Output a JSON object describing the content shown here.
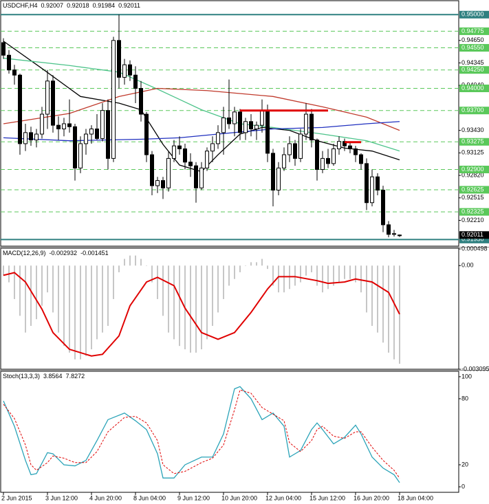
{
  "chart_data": [
    {
      "type": "candlestick",
      "symbol": "USDCHF,H4",
      "categories": [
        "2 Jun 2015",
        null,
        null,
        null,
        null,
        null,
        null,
        null,
        "3 Jun 12:00",
        null,
        null,
        null,
        null,
        null,
        null,
        null,
        "4 Jun 20:00",
        null,
        null,
        null,
        null,
        null,
        null,
        null,
        "8 Jun 04:00",
        null,
        null,
        null,
        null,
        null,
        null,
        null,
        "9 Jun 12:00",
        null,
        null,
        null,
        null,
        null,
        null,
        null,
        "10 Jun 20:00",
        null,
        null,
        null,
        null,
        null,
        null,
        null,
        "12 Jun 04:00",
        null,
        null,
        null,
        null,
        null,
        null,
        null,
        "15 Jun 12:00",
        null,
        null,
        null,
        null,
        null,
        null,
        null,
        "16 Jun 20:00",
        null,
        null,
        null,
        null,
        null,
        null,
        null,
        "18 Jun 04:00"
      ],
      "open": [
        0.9462,
        0.9445,
        0.9425,
        0.9418,
        0.9325,
        0.934,
        0.933,
        0.9338,
        0.9365,
        0.941,
        0.935,
        0.9345,
        0.9352,
        0.9348,
        0.9292,
        0.9325,
        0.9338,
        0.9345,
        0.9332,
        0.937,
        0.9305,
        0.9465,
        0.9415,
        0.9432,
        0.9418,
        0.94,
        0.9365,
        0.931,
        0.9268,
        0.9275,
        0.9265,
        0.9305,
        0.9322,
        0.9318,
        0.93,
        0.9295,
        0.9265,
        0.9292,
        0.9315,
        0.9325,
        0.934,
        0.936,
        0.9352,
        0.9368,
        0.934,
        0.9355,
        0.9345,
        0.935,
        0.937,
        0.9312,
        0.9262,
        0.9292,
        0.931,
        0.9325,
        0.9305,
        0.9338,
        0.9365,
        0.933,
        0.929,
        0.9305,
        0.9298,
        0.9318,
        0.9328,
        0.9322,
        0.9318,
        0.931,
        0.9298,
        0.9245,
        0.928,
        0.9262,
        0.9215,
        0.9202,
        0.92007
      ],
      "high": [
        0.9468,
        0.9452,
        0.9432,
        0.942,
        0.9352,
        0.9348,
        0.9345,
        0.9375,
        0.9425,
        0.9418,
        0.9362,
        0.936,
        0.9385,
        0.9352,
        0.9335,
        0.9345,
        0.935,
        0.9365,
        0.938,
        0.9385,
        0.947,
        0.95,
        0.944,
        0.9438,
        0.943,
        0.941,
        0.9368,
        0.9315,
        0.928,
        0.928,
        0.9315,
        0.933,
        0.9335,
        0.9325,
        0.9312,
        0.93,
        0.93,
        0.932,
        0.9335,
        0.935,
        0.9375,
        0.9412,
        0.9375,
        0.9372,
        0.936,
        0.9365,
        0.9355,
        0.9385,
        0.9378,
        0.9318,
        0.93,
        0.932,
        0.9335,
        0.933,
        0.9345,
        0.938,
        0.9372,
        0.9332,
        0.9315,
        0.9318,
        0.9325,
        0.9335,
        0.9332,
        0.9328,
        0.9322,
        0.9312,
        0.9305,
        0.929,
        0.9285,
        0.9268,
        0.922,
        0.9208,
        0.92018
      ],
      "low": [
        0.944,
        0.942,
        0.9405,
        0.931,
        0.9315,
        0.9322,
        0.932,
        0.9332,
        0.9345,
        0.934,
        0.933,
        0.9335,
        0.934,
        0.9275,
        0.9285,
        0.931,
        0.9325,
        0.933,
        0.9328,
        0.929,
        0.93,
        0.94,
        0.9405,
        0.941,
        0.938,
        0.9355,
        0.93,
        0.9255,
        0.9258,
        0.925,
        0.926,
        0.93,
        0.931,
        0.929,
        0.928,
        0.9245,
        0.9262,
        0.9288,
        0.93,
        0.9318,
        0.931,
        0.9345,
        0.9335,
        0.933,
        0.933,
        0.9335,
        0.933,
        0.934,
        0.93,
        0.924,
        0.9255,
        0.9288,
        0.93,
        0.9295,
        0.93,
        0.933,
        0.932,
        0.9275,
        0.9285,
        0.9292,
        0.9295,
        0.931,
        0.9315,
        0.9312,
        0.93,
        0.929,
        0.9235,
        0.924,
        0.9255,
        0.9205,
        0.9198,
        0.9199,
        0.91984
      ],
      "close": [
        0.9445,
        0.9425,
        0.9418,
        0.9325,
        0.934,
        0.933,
        0.9338,
        0.9365,
        0.941,
        0.935,
        0.9345,
        0.9352,
        0.9348,
        0.9292,
        0.9325,
        0.9338,
        0.9345,
        0.9332,
        0.937,
        0.9305,
        0.9465,
        0.9415,
        0.9432,
        0.9418,
        0.94,
        0.9365,
        0.931,
        0.9268,
        0.9275,
        0.9265,
        0.9305,
        0.9322,
        0.9318,
        0.93,
        0.9295,
        0.9265,
        0.9292,
        0.9315,
        0.9325,
        0.934,
        0.936,
        0.9352,
        0.9368,
        0.934,
        0.9355,
        0.9345,
        0.935,
        0.937,
        0.9312,
        0.9262,
        0.9292,
        0.931,
        0.9325,
        0.9305,
        0.9338,
        0.9365,
        0.933,
        0.929,
        0.9305,
        0.9298,
        0.9318,
        0.9328,
        0.9322,
        0.9318,
        0.931,
        0.9298,
        0.9245,
        0.928,
        0.9262,
        0.9215,
        0.9202,
        0.9203,
        0.92011
      ],
      "up_color": "#ffffff",
      "down_color": "#000000",
      "ylim": [
        0.9186,
        0.9518
      ],
      "yticks": [
        {
          "value": 0.9465,
          "label": "0.94650"
        },
        {
          "value": 0.94345,
          "label": "0.94345"
        },
        {
          "value": 0.9404,
          "label": "0.94040"
        },
        {
          "value": 0.9343,
          "label": "0.93430"
        },
        {
          "value": 0.93125,
          "label": "0.93125"
        },
        {
          "value": 0.9282,
          "label": "0.92820"
        },
        {
          "value": 0.92515,
          "label": "0.92515"
        },
        {
          "value": 0.9221,
          "label": "0.92210"
        }
      ],
      "levels": [
        {
          "value": 0.95,
          "label": "0.95000",
          "style": "solid",
          "color": "#2f8080"
        },
        {
          "value": 0.94775,
          "label": "0.94775",
          "style": "dashed",
          "color": "#5ac85a"
        },
        {
          "value": 0.9455,
          "label": "0.94550",
          "style": "dashed",
          "color": "#5ac85a"
        },
        {
          "value": 0.9425,
          "label": "0.94250",
          "style": "dashed",
          "color": "#5ac85a"
        },
        {
          "value": 0.94,
          "label": "0.94000",
          "style": "dashed",
          "color": "#5ac85a"
        },
        {
          "value": 0.937,
          "label": "0.93700",
          "style": "dashed",
          "color": "#5ac85a"
        },
        {
          "value": 0.93275,
          "label": "0.93275",
          "style": "dashed",
          "color": "#5ac85a"
        },
        {
          "value": 0.929,
          "label": "0.92900",
          "style": "dashed",
          "color": "#5ac85a"
        },
        {
          "value": 0.92625,
          "label": "0.92625",
          "style": "dashed",
          "color": "#5ac85a"
        },
        {
          "value": 0.92325,
          "label": "0.92325",
          "style": "dashed",
          "color": "#5ac85a"
        },
        {
          "value": 0.9195,
          "label": "0.91950",
          "style": "solid",
          "color": "#2f8080"
        }
      ],
      "overlays": [
        {
          "color": "#000000",
          "x": [
            0,
            7,
            14,
            21,
            25,
            29,
            32,
            36,
            39,
            43,
            47,
            52,
            57,
            62,
            67,
            72
          ],
          "values": [
            0.9464,
            0.9427,
            0.9389,
            0.938,
            0.9371,
            0.9324,
            0.9296,
            0.9287,
            0.931,
            0.9338,
            0.9347,
            0.9343,
            0.9329,
            0.9319,
            0.9315,
            0.9303
          ]
        },
        {
          "color": "#4cc38a",
          "x": [
            0,
            12,
            21,
            28,
            36,
            43,
            49,
            58,
            66,
            72
          ],
          "values": [
            0.9441,
            0.9431,
            0.9422,
            0.9399,
            0.9371,
            0.9352,
            0.9347,
            0.9338,
            0.9329,
            0.9315
          ]
        },
        {
          "color": "#c0392b",
          "x": [
            0,
            12,
            21,
            28,
            37,
            49,
            58,
            66,
            72
          ],
          "values": [
            0.9352,
            0.9366,
            0.9389,
            0.94,
            0.9397,
            0.9389,
            0.9375,
            0.9361,
            0.9343
          ]
        },
        {
          "color": "#1f2fbf",
          "x": [
            0,
            12,
            25,
            32,
            39,
            49,
            58,
            66,
            72
          ],
          "values": [
            0.9333,
            0.9329,
            0.9331,
            0.9333,
            0.9338,
            0.9345,
            0.9347,
            0.9352,
            0.9355
          ]
        }
      ],
      "trend_lines": [
        {
          "color": "#e00000",
          "y": 0.937,
          "x": [
            43,
            59
          ]
        },
        {
          "color": "#e00000",
          "y": 0.9327,
          "x": [
            62,
            65
          ]
        }
      ],
      "current_color": "#000000"
    },
    {
      "type": "macd",
      "title": "MACD(12,26,9)",
      "values": [
        -0.0003,
        -0.0005,
        -0.001,
        -0.0015,
        -0.002,
        -0.0018,
        -0.0016,
        -0.0012,
        -0.0008,
        -0.0014,
        -0.002,
        -0.0024,
        -0.0026,
        -0.0028,
        -0.0028,
        -0.0027,
        -0.0025,
        -0.0022,
        -0.002,
        -0.0018,
        -0.001,
        -0.0002,
        0.0002,
        0.0003,
        0.0003,
        0.0002,
        0,
        -0.0005,
        -0.001,
        -0.0015,
        -0.002,
        -0.0022,
        -0.0024,
        -0.0025,
        -0.0026,
        -0.0026,
        -0.0025,
        -0.0022,
        -0.0018,
        -0.0014,
        -0.001,
        -0.0006,
        -0.0004,
        -0.0002,
        0,
        0.0001,
        0.0001,
        0.0002,
        -0.0001,
        -0.0006,
        -0.0008,
        -0.0008,
        -0.0007,
        -0.0006,
        -0.0005,
        -0.0003,
        -0.0002,
        -0.0006,
        -0.0008,
        -0.0007,
        -0.0006,
        -0.0005,
        -0.0004,
        -0.0004,
        -0.0005,
        -0.0008,
        -0.0014,
        -0.0018,
        -0.002,
        -0.0023,
        -0.0026,
        -0.0028,
        -0.002932
      ],
      "color": "#b4b4b4",
      "signal": {
        "color": "#e00000",
        "x": [
          0,
          2,
          4,
          7,
          9,
          12,
          16,
          18,
          21,
          23,
          26,
          28,
          31,
          33,
          36,
          39,
          42,
          45,
          48,
          50,
          53,
          57,
          59,
          62,
          64,
          67,
          70,
          72
        ],
        "values": [
          -0.00029,
          -0.00021,
          -0.00049,
          -0.0013,
          -0.002,
          -0.0025,
          -0.0027,
          -0.00265,
          -0.0021,
          -0.0012,
          -0.00049,
          -0.00035,
          -0.0006,
          -0.00127,
          -0.002,
          -0.0022,
          -0.002,
          -0.0014,
          -0.0007,
          -0.00033,
          -0.00033,
          -0.00045,
          -0.00053,
          -0.00049,
          -0.0004,
          -0.00049,
          -0.0008,
          -0.001451
        ]
      },
      "ylim": [
        -0.003095,
        0.000498
      ],
      "yticks": [
        0.000498,
        {
          "value": 0,
          "label": "0.00"
        },
        -0.003095
      ]
    },
    {
      "type": "line",
      "title": "Stoch(13,3,3)",
      "series": [
        {
          "color": "#2aa3b8",
          "x": [
            0,
            2,
            4,
            5,
            6,
            8,
            9,
            11,
            13,
            15,
            17,
            19,
            22,
            24,
            26,
            28,
            29,
            31,
            33,
            36,
            38,
            40,
            42,
            43,
            45,
            47,
            49,
            51,
            52,
            54,
            56,
            57,
            58,
            60,
            62,
            64,
            65,
            67,
            69,
            71,
            72
          ],
          "values": [
            78,
            55,
            24,
            11,
            12,
            31,
            30,
            20,
            19,
            24,
            42,
            61,
            67,
            60,
            52,
            30,
            8,
            8,
            20,
            27,
            27,
            48,
            89,
            91,
            80,
            61,
            67,
            55,
            27,
            33,
            52,
            58,
            52,
            39,
            45,
            56,
            48,
            27,
            17,
            11,
            3.8564
          ]
        },
        {
          "color": "#e00000",
          "dash": true,
          "x": [
            0,
            2,
            4,
            5,
            6,
            8,
            9,
            11,
            13,
            15,
            17,
            19,
            22,
            24,
            26,
            28,
            29,
            31,
            33,
            36,
            38,
            40,
            42,
            43,
            45,
            47,
            49,
            51,
            52,
            54,
            56,
            57,
            58,
            60,
            62,
            64,
            65,
            67,
            69,
            71,
            72
          ],
          "values": [
            75,
            62,
            38,
            20,
            15,
            22,
            28,
            26,
            22,
            22,
            32,
            50,
            63,
            64,
            58,
            42,
            20,
            12,
            14,
            22,
            26,
            38,
            70,
            88,
            85,
            72,
            66,
            60,
            40,
            32,
            42,
            52,
            55,
            46,
            44,
            50,
            50,
            36,
            24,
            15,
            7.8272
          ]
        }
      ],
      "ylim": [
        -5,
        104.3
      ],
      "yticks": [
        100,
        80,
        20,
        0
      ]
    }
  ]
}
